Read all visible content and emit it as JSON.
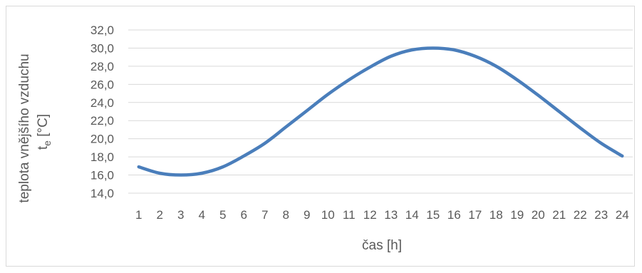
{
  "chart_data": {
    "type": "line",
    "x": [
      1,
      2,
      3,
      4,
      5,
      6,
      7,
      8,
      9,
      10,
      11,
      12,
      13,
      14,
      15,
      16,
      17,
      18,
      19,
      20,
      21,
      22,
      23,
      24
    ],
    "series": [
      {
        "values": [
          16.9,
          16.2,
          16.0,
          16.2,
          16.9,
          18.1,
          19.5,
          21.3,
          23.1,
          24.9,
          26.5,
          27.9,
          29.1,
          29.8,
          30.0,
          29.8,
          29.1,
          28.0,
          26.5,
          24.8,
          23.0,
          21.2,
          19.5,
          18.1
        ],
        "color": "#4a7ebb"
      }
    ],
    "yticks": [
      "14,0",
      "16,0",
      "18,0",
      "20,0",
      "22,0",
      "24,0",
      "26,0",
      "28,0",
      "30,0",
      "32,0"
    ],
    "ylim": [
      14,
      32
    ],
    "xlabel": "čas [h]",
    "ylabel_main": "teplota vnějšího vzduchu",
    "ylabel_symbol": "t",
    "ylabel_subscript": "e",
    "ylabel_unit": " [°C]",
    "grid": true,
    "legend": "none"
  }
}
